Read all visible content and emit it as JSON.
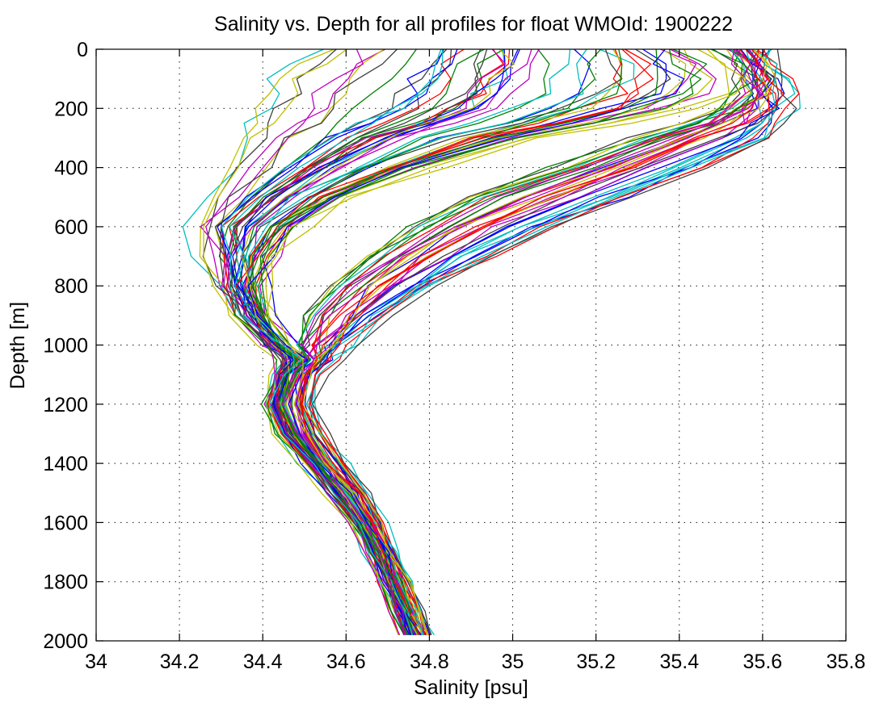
{
  "chart_data": {
    "type": "line",
    "title": "Salinity vs. Depth for all profiles for float WMOId: 1900222",
    "xlabel": "Salinity [psu]",
    "ylabel": "Depth [m]",
    "xlim": [
      34,
      35.8
    ],
    "ylim": [
      0,
      2000
    ],
    "y_reversed": true,
    "grid": true,
    "legend": "none",
    "x_ticks": [
      "34",
      "34.2",
      "34.4",
      "34.6",
      "34.8",
      "35",
      "35.2",
      "35.4",
      "35.6",
      "35.8"
    ],
    "y_ticks": [
      "0",
      "200",
      "400",
      "600",
      "800",
      "1000",
      "1200",
      "1400",
      "1600",
      "1800",
      "2000"
    ],
    "series_colors": [
      "#0000ff",
      "#008000",
      "#ff0000",
      "#00bfbf",
      "#bf00bf",
      "#bfbf00",
      "#404040"
    ],
    "depth_levels": [
      0,
      50,
      100,
      150,
      200,
      250,
      300,
      400,
      500,
      600,
      700,
      800,
      900,
      1000,
      1050,
      1100,
      1200,
      1300,
      1400,
      1500,
      1600,
      1700,
      1800,
      1900,
      1980
    ],
    "profile_types": {
      "salty": [
        35.6,
        35.62,
        35.63,
        35.64,
        35.65,
        35.64,
        35.6,
        35.45,
        35.27,
        35.08,
        34.93,
        34.8,
        34.68,
        34.59,
        34.55,
        34.52,
        34.5,
        34.53,
        34.58,
        34.63,
        34.67,
        34.7,
        34.73,
        34.76,
        34.78
      ],
      "intermediate": [
        35.45,
        35.5,
        35.52,
        35.5,
        35.4,
        35.25,
        35.05,
        34.8,
        34.6,
        34.48,
        34.42,
        34.39,
        34.4,
        34.45,
        34.49,
        34.47,
        34.45,
        34.48,
        34.54,
        34.6,
        34.65,
        34.69,
        34.72,
        34.75,
        34.77
      ],
      "fresh": [
        34.55,
        34.5,
        34.45,
        34.42,
        34.4,
        34.38,
        34.36,
        34.33,
        34.28,
        34.24,
        34.26,
        34.3,
        34.35,
        34.42,
        34.46,
        34.44,
        34.42,
        34.45,
        34.51,
        34.57,
        34.62,
        34.66,
        34.7,
        34.73,
        34.75
      ]
    },
    "profile_count": 90
  }
}
